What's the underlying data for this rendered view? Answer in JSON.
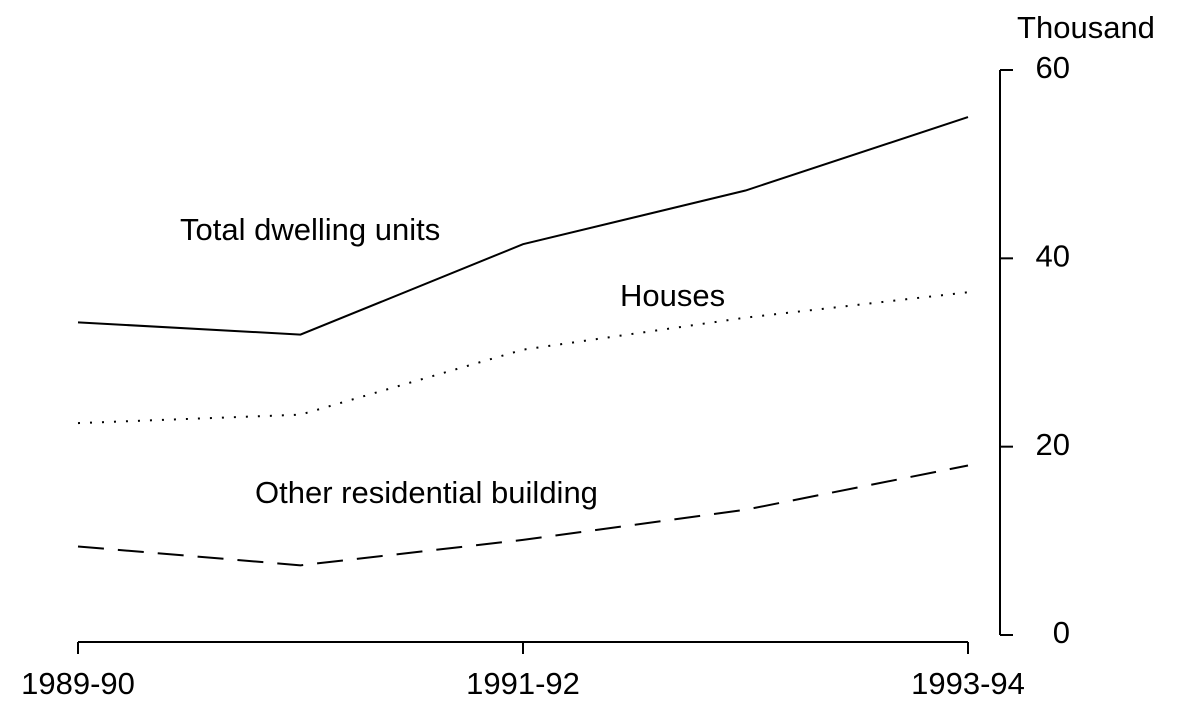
{
  "chart_data": {
    "type": "line",
    "y_label": "Thousand",
    "categories": [
      "1989-90",
      null,
      "1991-92",
      null,
      "1993-94"
    ],
    "series": [
      {
        "name": "Total dwelling units",
        "color": "#000000",
        "style": "solid",
        "values": [
          33.2,
          31.9,
          41.5,
          47.2,
          55.0
        ]
      },
      {
        "name": "Houses",
        "color": "#000000",
        "style": "dotted",
        "values": [
          22.5,
          23.4,
          30.3,
          33.7,
          36.4
        ]
      },
      {
        "name": "Other residential building",
        "color": "#000000",
        "style": "dashed",
        "values": [
          9.4,
          7.4,
          10.1,
          13.3,
          18.0
        ]
      }
    ],
    "ylim": [
      0,
      60
    ],
    "yticks": [
      0,
      20,
      40,
      60
    ],
    "y_axis_side": "right",
    "grid": false
  }
}
